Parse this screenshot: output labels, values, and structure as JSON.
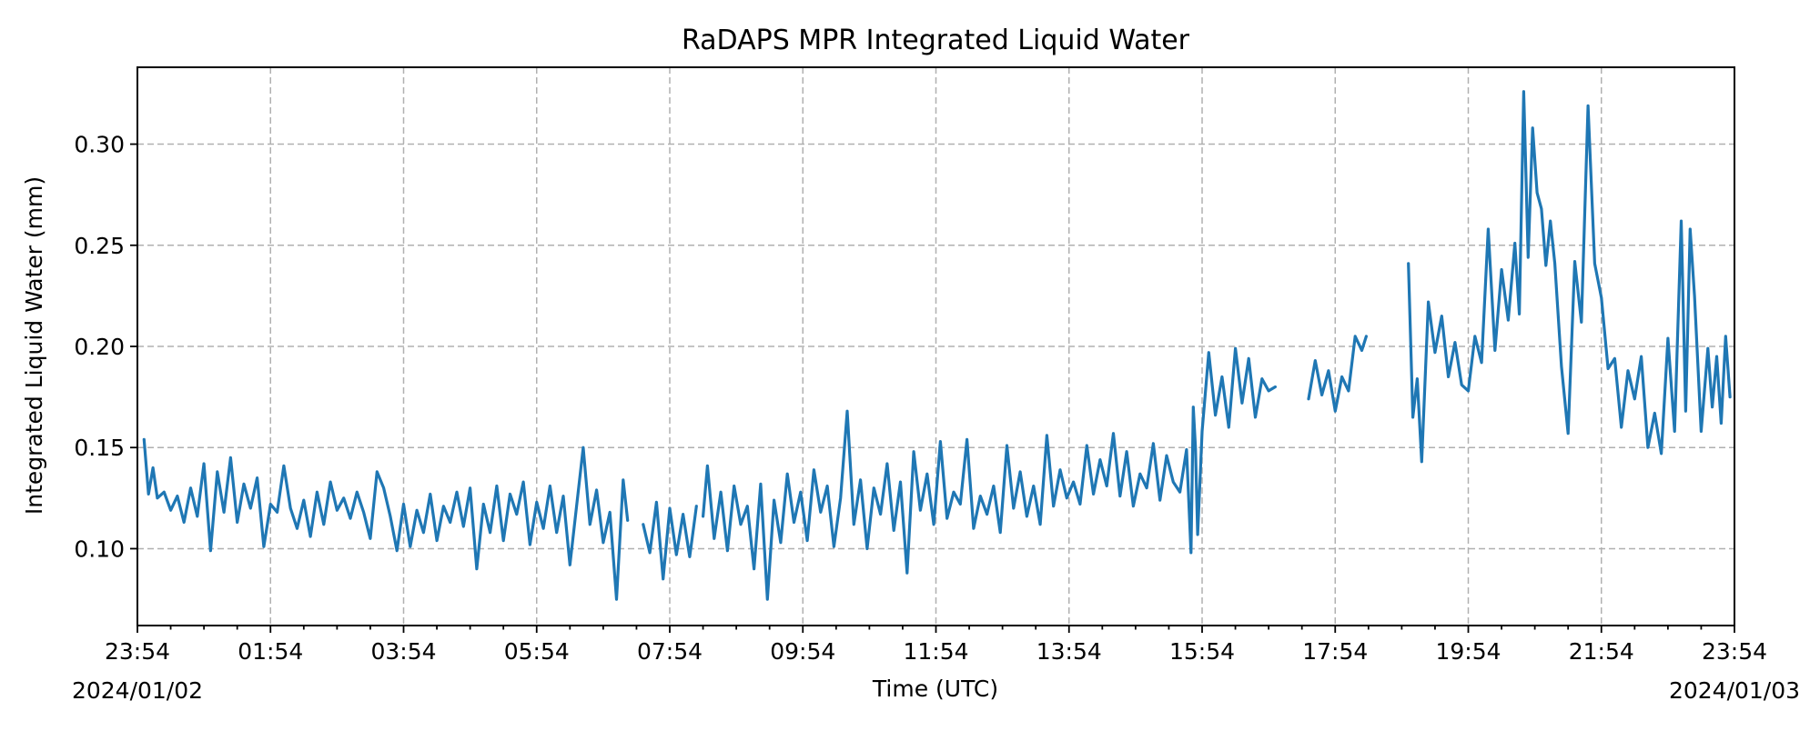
{
  "chart_data": {
    "type": "line",
    "title": "RaDAPS MPR Integrated Liquid Water",
    "xlabel": "Time (UTC)",
    "ylabel": "Integrated Liquid Water (mm)",
    "x_tick_labels": [
      "23:54",
      "01:54",
      "03:54",
      "05:54",
      "07:54",
      "09:54",
      "11:54",
      "13:54",
      "15:54",
      "17:54",
      "19:54",
      "21:54",
      "23:54"
    ],
    "x_date_start_label": "2024/01/02",
    "x_date_end_label": "2024/01/03",
    "x_range": [
      "2024-01-02 23:54",
      "2024-01-03 23:54"
    ],
    "y_ticks": [
      0.1,
      0.15,
      0.2,
      0.25,
      0.3
    ],
    "ylim": [
      0.062,
      0.338
    ],
    "grid": true,
    "colors": {
      "series": "#1f77b4"
    },
    "series": [
      {
        "values": [
          [
            "2024-01-03 00:00",
            0.154
          ],
          [
            "2024-01-03 00:04",
            0.127
          ],
          [
            "2024-01-03 00:08",
            0.14
          ],
          [
            "2024-01-03 00:12",
            0.125
          ],
          [
            "2024-01-03 00:18",
            0.128
          ],
          [
            "2024-01-03 00:24",
            0.119
          ],
          [
            "2024-01-03 00:30",
            0.126
          ],
          [
            "2024-01-03 00:36",
            0.113
          ],
          [
            "2024-01-03 00:42",
            0.13
          ],
          [
            "2024-01-03 00:48",
            0.116
          ],
          [
            "2024-01-03 00:54",
            0.142
          ],
          [
            "2024-01-03 01:00",
            0.099
          ],
          [
            "2024-01-03 01:06",
            0.138
          ],
          [
            "2024-01-03 01:12",
            0.118
          ],
          [
            "2024-01-03 01:18",
            0.145
          ],
          [
            "2024-01-03 01:24",
            0.113
          ],
          [
            "2024-01-03 01:30",
            0.132
          ],
          [
            "2024-01-03 01:36",
            0.12
          ],
          [
            "2024-01-03 01:42",
            0.135
          ],
          [
            "2024-01-03 01:48",
            0.101
          ],
          [
            "2024-01-03 01:54",
            0.122
          ],
          [
            "2024-01-03 02:00",
            0.118
          ],
          [
            "2024-01-03 02:06",
            0.141
          ],
          [
            "2024-01-03 02:12",
            0.12
          ],
          [
            "2024-01-03 02:18",
            0.11
          ],
          [
            "2024-01-03 02:24",
            0.124
          ],
          [
            "2024-01-03 02:30",
            0.106
          ],
          [
            "2024-01-03 02:36",
            0.128
          ],
          [
            "2024-01-03 02:42",
            0.112
          ],
          [
            "2024-01-03 02:48",
            0.133
          ],
          [
            "2024-01-03 02:54",
            0.119
          ],
          [
            "2024-01-03 03:00",
            0.125
          ],
          [
            "2024-01-03 03:06",
            0.115
          ],
          [
            "2024-01-03 03:12",
            0.128
          ],
          [
            "2024-01-03 03:18",
            0.118
          ],
          [
            "2024-01-03 03:24",
            0.105
          ],
          [
            "2024-01-03 03:30",
            0.138
          ],
          [
            "2024-01-03 03:36",
            0.13
          ],
          [
            "2024-01-03 03:42",
            0.116
          ],
          [
            "2024-01-03 03:48",
            0.099
          ],
          [
            "2024-01-03 03:54",
            0.122
          ],
          [
            "2024-01-03 04:00",
            0.101
          ],
          [
            "2024-01-03 04:06",
            0.119
          ],
          [
            "2024-01-03 04:12",
            0.108
          ],
          [
            "2024-01-03 04:18",
            0.127
          ],
          [
            "2024-01-03 04:24",
            0.104
          ],
          [
            "2024-01-03 04:30",
            0.121
          ],
          [
            "2024-01-03 04:36",
            0.113
          ],
          [
            "2024-01-03 04:42",
            0.128
          ],
          [
            "2024-01-03 04:48",
            0.111
          ],
          [
            "2024-01-03 04:54",
            0.13
          ],
          [
            "2024-01-03 05:00",
            0.09
          ],
          [
            "2024-01-03 05:06",
            0.122
          ],
          [
            "2024-01-03 05:12",
            0.108
          ],
          [
            "2024-01-03 05:18",
            0.131
          ],
          [
            "2024-01-03 05:24",
            0.104
          ],
          [
            "2024-01-03 05:30",
            0.127
          ],
          [
            "2024-01-03 05:36",
            0.117
          ],
          [
            "2024-01-03 05:42",
            0.133
          ],
          [
            "2024-01-03 05:48",
            0.102
          ],
          [
            "2024-01-03 05:54",
            0.123
          ],
          [
            "2024-01-03 06:00",
            0.11
          ],
          [
            "2024-01-03 06:06",
            0.131
          ],
          [
            "2024-01-03 06:12",
            0.108
          ],
          [
            "2024-01-03 06:18",
            0.126
          ],
          [
            "2024-01-03 06:24",
            0.092
          ],
          [
            "2024-01-03 06:30",
            0.121
          ],
          [
            "2024-01-03 06:36",
            0.15
          ],
          [
            "2024-01-03 06:42",
            0.112
          ],
          [
            "2024-01-03 06:48",
            0.129
          ],
          [
            "2024-01-03 06:54",
            0.103
          ],
          [
            "2024-01-03 07:00",
            0.118
          ],
          [
            "2024-01-03 07:06",
            0.075
          ],
          [
            "2024-01-03 07:12",
            0.134
          ],
          [
            "2024-01-03 07:16",
            0.114
          ],
          null,
          [
            "2024-01-03 07:30",
            0.112
          ],
          [
            "2024-01-03 07:36",
            0.098
          ],
          [
            "2024-01-03 07:42",
            0.123
          ],
          [
            "2024-01-03 07:48",
            0.085
          ],
          [
            "2024-01-03 07:54",
            0.12
          ],
          [
            "2024-01-03 08:00",
            0.097
          ],
          [
            "2024-01-03 08:06",
            0.117
          ],
          [
            "2024-01-03 08:12",
            0.096
          ],
          [
            "2024-01-03 08:18",
            0.121
          ],
          null,
          [
            "2024-01-03 08:24",
            0.116
          ],
          [
            "2024-01-03 08:28",
            0.141
          ],
          [
            "2024-01-03 08:34",
            0.105
          ],
          [
            "2024-01-03 08:40",
            0.128
          ],
          [
            "2024-01-03 08:46",
            0.099
          ],
          [
            "2024-01-03 08:52",
            0.131
          ],
          [
            "2024-01-03 08:58",
            0.112
          ],
          [
            "2024-01-03 09:04",
            0.121
          ],
          [
            "2024-01-03 09:10",
            0.09
          ],
          [
            "2024-01-03 09:16",
            0.132
          ],
          [
            "2024-01-03 09:22",
            0.075
          ],
          [
            "2024-01-03 09:28",
            0.124
          ],
          [
            "2024-01-03 09:34",
            0.103
          ],
          [
            "2024-01-03 09:40",
            0.137
          ],
          [
            "2024-01-03 09:46",
            0.113
          ],
          [
            "2024-01-03 09:52",
            0.128
          ],
          [
            "2024-01-03 09:58",
            0.104
          ],
          [
            "2024-01-03 10:04",
            0.139
          ],
          [
            "2024-01-03 10:10",
            0.118
          ],
          [
            "2024-01-03 10:16",
            0.131
          ],
          [
            "2024-01-03 10:22",
            0.101
          ],
          [
            "2024-01-03 10:28",
            0.125
          ],
          [
            "2024-01-03 10:34",
            0.168
          ],
          [
            "2024-01-03 10:40",
            0.112
          ],
          [
            "2024-01-03 10:46",
            0.134
          ],
          [
            "2024-01-03 10:52",
            0.1
          ],
          [
            "2024-01-03 10:58",
            0.13
          ],
          [
            "2024-01-03 11:04",
            0.117
          ],
          [
            "2024-01-03 11:10",
            0.142
          ],
          [
            "2024-01-03 11:16",
            0.109
          ],
          [
            "2024-01-03 11:22",
            0.133
          ],
          [
            "2024-01-03 11:28",
            0.088
          ],
          [
            "2024-01-03 11:34",
            0.148
          ],
          [
            "2024-01-03 11:40",
            0.119
          ],
          [
            "2024-01-03 11:46",
            0.137
          ],
          [
            "2024-01-03 11:52",
            0.112
          ],
          [
            "2024-01-03 11:58",
            0.153
          ],
          [
            "2024-01-03 12:04",
            0.115
          ],
          [
            "2024-01-03 12:10",
            0.128
          ],
          [
            "2024-01-03 12:16",
            0.122
          ],
          [
            "2024-01-03 12:22",
            0.154
          ],
          [
            "2024-01-03 12:28",
            0.11
          ],
          [
            "2024-01-03 12:34",
            0.126
          ],
          [
            "2024-01-03 12:40",
            0.117
          ],
          [
            "2024-01-03 12:46",
            0.131
          ],
          [
            "2024-01-03 12:52",
            0.108
          ],
          [
            "2024-01-03 12:58",
            0.151
          ],
          [
            "2024-01-03 13:04",
            0.12
          ],
          [
            "2024-01-03 13:10",
            0.138
          ],
          [
            "2024-01-03 13:16",
            0.116
          ],
          [
            "2024-01-03 13:22",
            0.131
          ],
          [
            "2024-01-03 13:28",
            0.112
          ],
          [
            "2024-01-03 13:34",
            0.156
          ],
          [
            "2024-01-03 13:40",
            0.121
          ],
          [
            "2024-01-03 13:46",
            0.139
          ],
          [
            "2024-01-03 13:52",
            0.125
          ],
          [
            "2024-01-03 13:58",
            0.133
          ],
          [
            "2024-01-03 14:04",
            0.122
          ],
          [
            "2024-01-03 14:10",
            0.151
          ],
          [
            "2024-01-03 14:16",
            0.127
          ],
          [
            "2024-01-03 14:22",
            0.144
          ],
          [
            "2024-01-03 14:28",
            0.131
          ],
          [
            "2024-01-03 14:34",
            0.157
          ],
          [
            "2024-01-03 14:40",
            0.126
          ],
          [
            "2024-01-03 14:46",
            0.148
          ],
          [
            "2024-01-03 14:52",
            0.121
          ],
          [
            "2024-01-03 14:58",
            0.137
          ],
          [
            "2024-01-03 15:04",
            0.13
          ],
          [
            "2024-01-03 15:10",
            0.152
          ],
          [
            "2024-01-03 15:16",
            0.124
          ],
          [
            "2024-01-03 15:22",
            0.146
          ],
          [
            "2024-01-03 15:28",
            0.133
          ],
          [
            "2024-01-03 15:34",
            0.128
          ],
          [
            "2024-01-03 15:40",
            0.149
          ],
          [
            "2024-01-03 15:44",
            0.098
          ],
          [
            "2024-01-03 15:46",
            0.17
          ],
          [
            "2024-01-03 15:48",
            0.15
          ],
          [
            "2024-01-03 15:50",
            0.107
          ],
          [
            "2024-01-03 15:54",
            0.158
          ],
          [
            "2024-01-03 16:00",
            0.197
          ],
          [
            "2024-01-03 16:06",
            0.166
          ],
          [
            "2024-01-03 16:12",
            0.185
          ],
          [
            "2024-01-03 16:18",
            0.16
          ],
          [
            "2024-01-03 16:24",
            0.199
          ],
          [
            "2024-01-03 16:30",
            0.172
          ],
          [
            "2024-01-03 16:36",
            0.194
          ],
          [
            "2024-01-03 16:42",
            0.165
          ],
          [
            "2024-01-03 16:48",
            0.184
          ],
          [
            "2024-01-03 16:54",
            0.178
          ],
          [
            "2024-01-03 17:00",
            0.18
          ],
          null,
          [
            "2024-01-03 17:30",
            0.174
          ],
          [
            "2024-01-03 17:36",
            0.193
          ],
          [
            "2024-01-03 17:42",
            0.176
          ],
          [
            "2024-01-03 17:48",
            0.188
          ],
          [
            "2024-01-03 17:54",
            0.168
          ],
          [
            "2024-01-03 18:00",
            0.185
          ],
          [
            "2024-01-03 18:06",
            0.178
          ],
          [
            "2024-01-03 18:12",
            0.205
          ],
          [
            "2024-01-03 18:18",
            0.198
          ],
          [
            "2024-01-03 18:22",
            0.205
          ],
          null,
          [
            "2024-01-03 19:00",
            0.241
          ],
          [
            "2024-01-03 19:04",
            0.165
          ],
          [
            "2024-01-03 19:08",
            0.184
          ],
          [
            "2024-01-03 19:12",
            0.143
          ],
          [
            "2024-01-03 19:18",
            0.222
          ],
          [
            "2024-01-03 19:24",
            0.197
          ],
          [
            "2024-01-03 19:30",
            0.215
          ],
          [
            "2024-01-03 19:36",
            0.185
          ],
          [
            "2024-01-03 19:42",
            0.202
          ],
          [
            "2024-01-03 19:48",
            0.181
          ],
          [
            "2024-01-03 19:54",
            0.178
          ],
          [
            "2024-01-03 20:00",
            0.205
          ],
          [
            "2024-01-03 20:06",
            0.192
          ],
          [
            "2024-01-03 20:12",
            0.258
          ],
          [
            "2024-01-03 20:18",
            0.198
          ],
          [
            "2024-01-03 20:24",
            0.238
          ],
          [
            "2024-01-03 20:30",
            0.213
          ],
          [
            "2024-01-03 20:36",
            0.251
          ],
          [
            "2024-01-03 20:40",
            0.216
          ],
          [
            "2024-01-03 20:44",
            0.326
          ],
          [
            "2024-01-03 20:48",
            0.244
          ],
          [
            "2024-01-03 20:52",
            0.308
          ],
          [
            "2024-01-03 20:56",
            0.276
          ],
          [
            "2024-01-03 21:00",
            0.268
          ],
          [
            "2024-01-03 21:04",
            0.24
          ],
          [
            "2024-01-03 21:08",
            0.262
          ],
          [
            "2024-01-03 21:12",
            0.241
          ],
          [
            "2024-01-03 21:18",
            0.19
          ],
          [
            "2024-01-03 21:24",
            0.157
          ],
          [
            "2024-01-03 21:30",
            0.242
          ],
          [
            "2024-01-03 21:36",
            0.212
          ],
          [
            "2024-01-03 21:42",
            0.319
          ],
          [
            "2024-01-03 21:48",
            0.241
          ],
          [
            "2024-01-03 21:54",
            0.224
          ],
          [
            "2024-01-03 22:00",
            0.189
          ],
          [
            "2024-01-03 22:06",
            0.194
          ],
          [
            "2024-01-03 22:12",
            0.16
          ],
          [
            "2024-01-03 22:18",
            0.188
          ],
          [
            "2024-01-03 22:24",
            0.174
          ],
          [
            "2024-01-03 22:30",
            0.195
          ],
          [
            "2024-01-03 22:36",
            0.15
          ],
          [
            "2024-01-03 22:42",
            0.167
          ],
          [
            "2024-01-03 22:48",
            0.147
          ],
          [
            "2024-01-03 22:54",
            0.204
          ],
          [
            "2024-01-03 23:00",
            0.158
          ],
          [
            "2024-01-03 23:06",
            0.262
          ],
          [
            "2024-01-03 23:10",
            0.168
          ],
          [
            "2024-01-03 23:14",
            0.258
          ],
          [
            "2024-01-03 23:18",
            0.225
          ],
          [
            "2024-01-03 23:24",
            0.158
          ],
          [
            "2024-01-03 23:30",
            0.199
          ],
          [
            "2024-01-03 23:34",
            0.17
          ],
          [
            "2024-01-03 23:38",
            0.195
          ],
          [
            "2024-01-03 23:42",
            0.162
          ],
          [
            "2024-01-03 23:46",
            0.205
          ],
          [
            "2024-01-03 23:50",
            0.175
          ]
        ]
      }
    ]
  }
}
